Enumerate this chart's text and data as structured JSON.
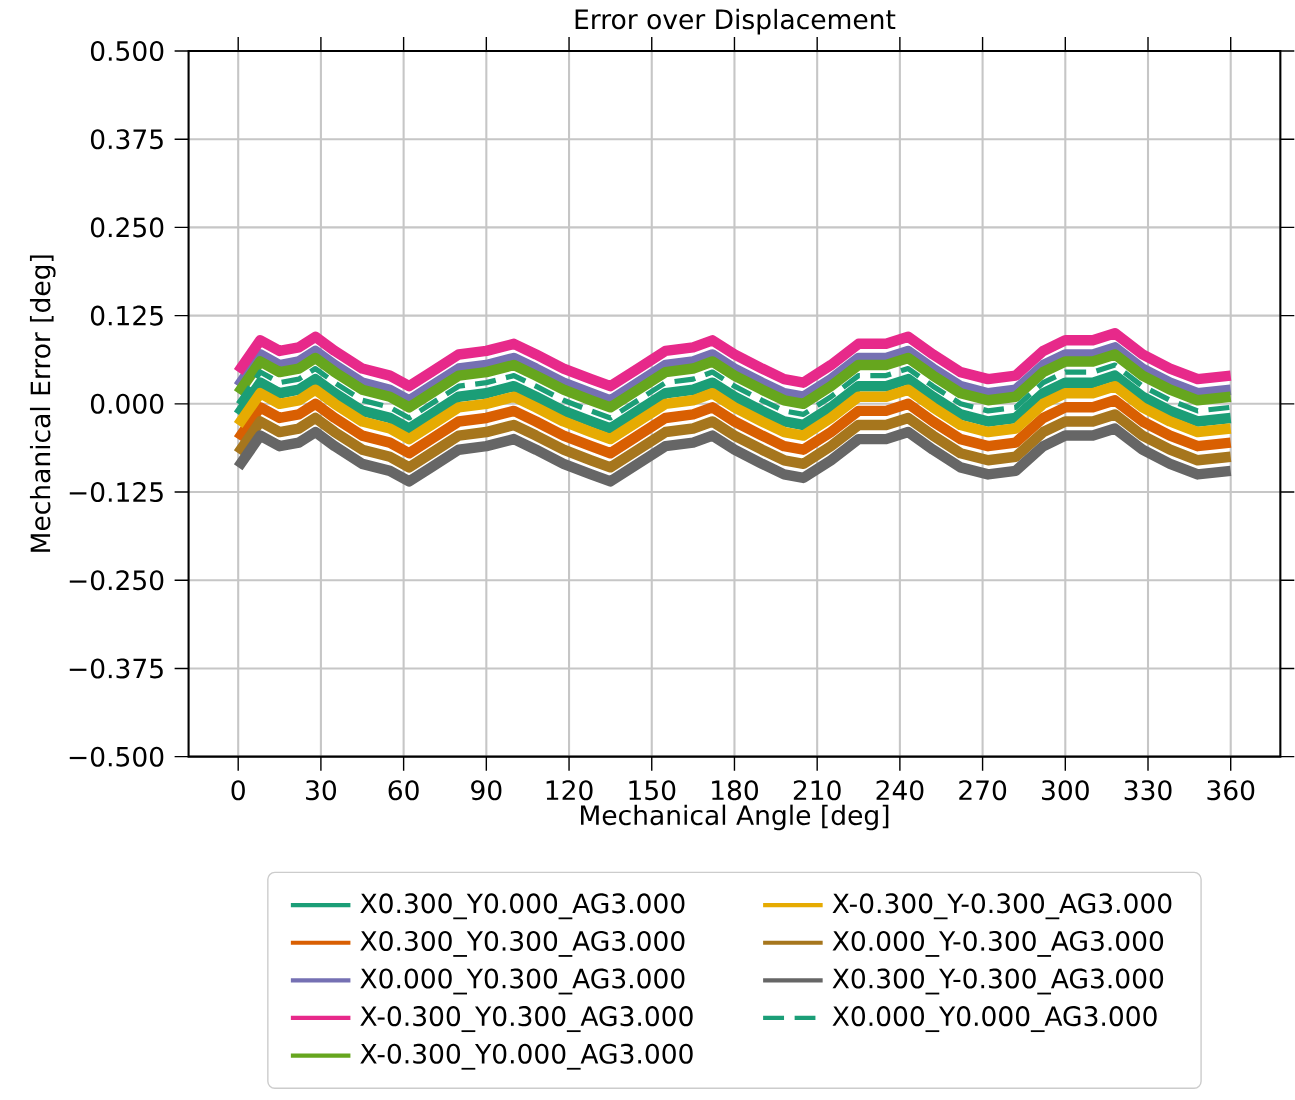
{
  "chart_data": {
    "type": "line",
    "title": "Error over Displacement",
    "xlabel": "Mechanical Angle [deg]",
    "ylabel": "Mechanical Error [deg]",
    "x": [
      0,
      8,
      15,
      22,
      28,
      35,
      45,
      55,
      62,
      70,
      80,
      90,
      100,
      108,
      118,
      128,
      135,
      145,
      155,
      165,
      172,
      180,
      190,
      198,
      205,
      215,
      225,
      235,
      243,
      252,
      262,
      272,
      282,
      292,
      300,
      310,
      318,
      328,
      338,
      348,
      360
    ],
    "series": [
      {
        "name": "X0.300_Y0.000_AG3.000",
        "color": "#1b9e77",
        "values": [
          -0.015,
          0.03,
          0.015,
          0.02,
          0.035,
          0.015,
          -0.01,
          -0.02,
          -0.035,
          -0.015,
          0.01,
          0.015,
          0.025,
          0.01,
          -0.01,
          -0.025,
          -0.035,
          -0.01,
          0.015,
          0.02,
          0.03,
          0.01,
          -0.01,
          -0.025,
          -0.03,
          -0.005,
          0.025,
          0.025,
          0.035,
          0.01,
          -0.015,
          -0.025,
          -0.02,
          0.015,
          0.03,
          0.03,
          0.04,
          0.01,
          -0.01,
          -0.025,
          -0.02
        ]
      },
      {
        "name": "X0.300_Y0.300_AG3.000",
        "color": "#d95f02",
        "values": [
          -0.05,
          -0.005,
          -0.02,
          -0.015,
          0,
          -0.02,
          -0.045,
          -0.055,
          -0.07,
          -0.05,
          -0.025,
          -0.02,
          -0.01,
          -0.025,
          -0.045,
          -0.06,
          -0.07,
          -0.045,
          -0.02,
          -0.015,
          -0.005,
          -0.025,
          -0.045,
          -0.06,
          -0.065,
          -0.04,
          -0.01,
          -0.01,
          0,
          -0.025,
          -0.05,
          -0.06,
          -0.055,
          -0.02,
          -0.005,
          -0.005,
          0.005,
          -0.025,
          -0.045,
          -0.06,
          -0.055
        ]
      },
      {
        "name": "X0.000_Y0.300_AG3.000",
        "color": "#7570b3",
        "values": [
          0.025,
          0.07,
          0.055,
          0.06,
          0.075,
          0.055,
          0.03,
          0.02,
          0.005,
          0.025,
          0.05,
          0.055,
          0.065,
          0.05,
          0.03,
          0.015,
          0.005,
          0.03,
          0.055,
          0.06,
          0.07,
          0.05,
          0.03,
          0.015,
          0.01,
          0.035,
          0.065,
          0.065,
          0.075,
          0.05,
          0.025,
          0.015,
          0.02,
          0.055,
          0.07,
          0.07,
          0.08,
          0.05,
          0.03,
          0.015,
          0.02
        ]
      },
      {
        "name": "X-0.300_Y0.300_AG3.000",
        "color": "#e7298a",
        "values": [
          0.045,
          0.09,
          0.075,
          0.08,
          0.095,
          0.075,
          0.05,
          0.04,
          0.025,
          0.045,
          0.07,
          0.075,
          0.085,
          0.07,
          0.05,
          0.035,
          0.025,
          0.05,
          0.075,
          0.08,
          0.09,
          0.07,
          0.05,
          0.035,
          0.03,
          0.055,
          0.085,
          0.085,
          0.095,
          0.07,
          0.045,
          0.035,
          0.04,
          0.075,
          0.09,
          0.09,
          0.1,
          0.07,
          0.05,
          0.035,
          0.04
        ]
      },
      {
        "name": "X-0.300_Y0.000_AG3.000",
        "color": "#66a61e",
        "values": [
          0.015,
          0.06,
          0.045,
          0.05,
          0.065,
          0.045,
          0.02,
          0.01,
          -0.005,
          0.015,
          0.04,
          0.045,
          0.055,
          0.04,
          0.02,
          0.005,
          -0.005,
          0.02,
          0.045,
          0.05,
          0.06,
          0.04,
          0.02,
          0.005,
          0,
          0.025,
          0.055,
          0.055,
          0.065,
          0.04,
          0.015,
          0.005,
          0.01,
          0.045,
          0.06,
          0.06,
          0.07,
          0.04,
          0.02,
          0.005,
          0.01
        ]
      },
      {
        "name": "X-0.300_Y-0.300_AG3.000",
        "color": "#e6ab02",
        "values": [
          -0.03,
          0.015,
          0,
          0.005,
          0.02,
          0,
          -0.025,
          -0.035,
          -0.05,
          -0.03,
          -0.005,
          0,
          0.01,
          -0.005,
          -0.025,
          -0.04,
          -0.05,
          -0.025,
          0,
          0.005,
          0.015,
          -0.005,
          -0.025,
          -0.04,
          -0.045,
          -0.02,
          0.01,
          0.01,
          0.02,
          -0.005,
          -0.03,
          -0.04,
          -0.035,
          0,
          0.015,
          0.015,
          0.025,
          -0.005,
          -0.025,
          -0.04,
          -0.035
        ]
      },
      {
        "name": "X0.000_Y-0.300_AG3.000",
        "color": "#a6761d",
        "values": [
          -0.07,
          -0.025,
          -0.04,
          -0.035,
          -0.02,
          -0.04,
          -0.065,
          -0.075,
          -0.09,
          -0.07,
          -0.045,
          -0.04,
          -0.03,
          -0.045,
          -0.065,
          -0.08,
          -0.09,
          -0.065,
          -0.04,
          -0.035,
          -0.025,
          -0.045,
          -0.065,
          -0.08,
          -0.085,
          -0.06,
          -0.03,
          -0.03,
          -0.02,
          -0.045,
          -0.07,
          -0.08,
          -0.075,
          -0.04,
          -0.025,
          -0.025,
          -0.015,
          -0.045,
          -0.065,
          -0.08,
          -0.075
        ]
      },
      {
        "name": "X0.300_Y-0.300_AG3.000",
        "color": "#666666",
        "values": [
          -0.09,
          -0.045,
          -0.06,
          -0.055,
          -0.04,
          -0.06,
          -0.085,
          -0.095,
          -0.11,
          -0.09,
          -0.065,
          -0.06,
          -0.05,
          -0.065,
          -0.085,
          -0.1,
          -0.11,
          -0.085,
          -0.06,
          -0.055,
          -0.045,
          -0.065,
          -0.085,
          -0.1,
          -0.105,
          -0.08,
          -0.05,
          -0.05,
          -0.04,
          -0.065,
          -0.09,
          -0.1,
          -0.095,
          -0.06,
          -0.045,
          -0.045,
          -0.035,
          -0.065,
          -0.085,
          -0.1,
          -0.095
        ]
      },
      {
        "name": "X0.000_Y0.000_AG3.000",
        "color": "#1b9e77",
        "line_style": "dashed",
        "values": [
          0,
          0.045,
          0.03,
          0.035,
          0.05,
          0.03,
          0.005,
          -0.005,
          -0.02,
          0,
          0.025,
          0.03,
          0.04,
          0.025,
          0.005,
          -0.01,
          -0.02,
          0.005,
          0.03,
          0.035,
          0.045,
          0.025,
          0.005,
          -0.01,
          -0.015,
          0.01,
          0.04,
          0.04,
          0.05,
          0.025,
          0,
          -0.01,
          -0.005,
          0.03,
          0.045,
          0.045,
          0.055,
          0.025,
          0.005,
          -0.01,
          -0.005
        ]
      }
    ],
    "xlim": [
      -18,
      378
    ],
    "ylim": [
      -0.5,
      0.5
    ],
    "xticks": [
      0,
      30,
      60,
      90,
      120,
      150,
      180,
      210,
      240,
      270,
      300,
      330,
      360
    ],
    "yticks": [
      {
        "value": -0.5,
        "label": "−0.500"
      },
      {
        "value": -0.375,
        "label": "−0.375"
      },
      {
        "value": -0.25,
        "label": "−0.250"
      },
      {
        "value": -0.125,
        "label": "−0.125"
      },
      {
        "value": 0,
        "label": "0.000"
      },
      {
        "value": 0.125,
        "label": "0.125"
      },
      {
        "value": 0.25,
        "label": "0.250"
      },
      {
        "value": 0.375,
        "label": "0.375"
      },
      {
        "value": 0.5,
        "label": "0.500"
      }
    ],
    "grid": true,
    "legend": "bottom",
    "marker": "none",
    "line_style": "solid"
  }
}
